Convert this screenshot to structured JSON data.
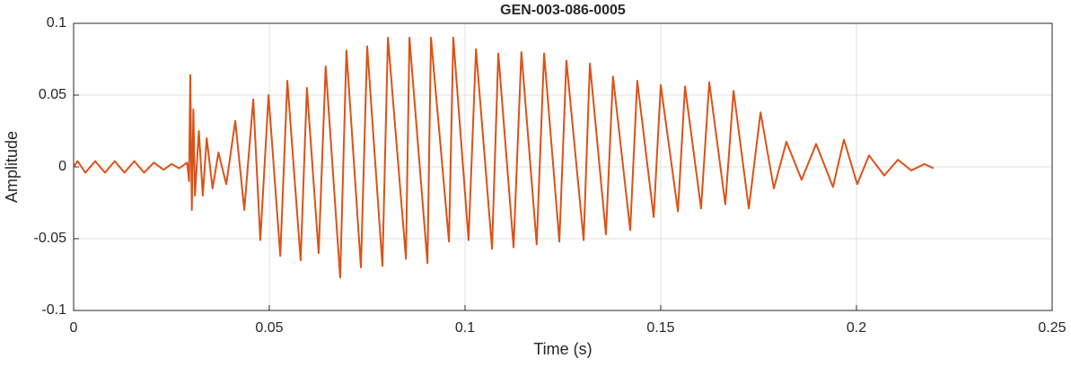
{
  "chart_data": {
    "type": "line",
    "title": "GEN-003-086-0005",
    "x_label": "Time (s)",
    "y_label": "Amplitude",
    "xlim": [
      0,
      0.25
    ],
    "xticks": [
      0,
      0.05,
      0.1,
      0.15,
      0.2,
      0.25
    ],
    "ylim": [
      -0.1,
      0.1
    ],
    "yticks": [
      -0.1,
      -0.05,
      0,
      0.05,
      0.1
    ],
    "grid": true,
    "series": [
      {
        "color": "#d95319",
        "x": [
          0,
          0.001,
          0.003,
          0.0055,
          0.008,
          0.0105,
          0.013,
          0.0155,
          0.018,
          0.0205,
          0.023,
          0.025,
          0.027,
          0.029,
          0.0295,
          0.0298,
          0.0302,
          0.0306,
          0.031,
          0.032,
          0.033,
          0.034,
          0.0355,
          0.037,
          0.039,
          0.0413,
          0.0436,
          0.0459,
          0.0477,
          0.0498,
          0.0528,
          0.0546,
          0.058,
          0.0596,
          0.0626,
          0.0644,
          0.0681,
          0.0697,
          0.0734,
          0.075,
          0.0789,
          0.0803,
          0.0849,
          0.0858,
          0.0904,
          0.0913,
          0.0959,
          0.097,
          0.1009,
          0.1028,
          0.1069,
          0.1085,
          0.1124,
          0.1144,
          0.1183,
          0.1202,
          0.1241,
          0.1259,
          0.1303,
          0.1319,
          0.136,
          0.1378,
          0.1422,
          0.144,
          0.1482,
          0.15,
          0.1544,
          0.1562,
          0.1603,
          0.1624,
          0.1665,
          0.1686,
          0.1725,
          0.1755,
          0.1789,
          0.1821,
          0.186,
          0.1897,
          0.194,
          0.1968,
          0.2002,
          0.2032,
          0.2071,
          0.2106,
          0.214,
          0.2174,
          0.2197
        ],
        "values": [
          0,
          0.004,
          -0.004,
          0.004,
          -0.004,
          0.004,
          -0.004,
          0.004,
          -0.004,
          0.003,
          -0.002,
          0.002,
          -0.001,
          0.003,
          -0.01,
          0.064,
          -0.03,
          0.04,
          -0.02,
          0.025,
          -0.02,
          0.02,
          -0.015,
          0.01,
          -0.012,
          0.032,
          -0.03,
          0.047,
          -0.051,
          0.05,
          -0.062,
          0.06,
          -0.065,
          0.055,
          -0.06,
          0.07,
          -0.077,
          0.081,
          -0.07,
          0.084,
          -0.069,
          0.09,
          -0.064,
          0.09,
          -0.067,
          0.09,
          -0.052,
          0.09,
          -0.051,
          0.082,
          -0.057,
          0.079,
          -0.056,
          0.08,
          -0.054,
          0.079,
          -0.052,
          0.074,
          -0.051,
          0.072,
          -0.047,
          0.063,
          -0.044,
          0.06,
          -0.035,
          0.057,
          -0.031,
          0.056,
          -0.029,
          0.059,
          -0.026,
          0.053,
          -0.029,
          0.038,
          -0.015,
          0.0175,
          -0.009,
          0.016,
          -0.014,
          0.019,
          -0.012,
          0.008,
          -0.006,
          0.005,
          -0.0025,
          0.002,
          -0.001
        ]
      }
    ]
  }
}
